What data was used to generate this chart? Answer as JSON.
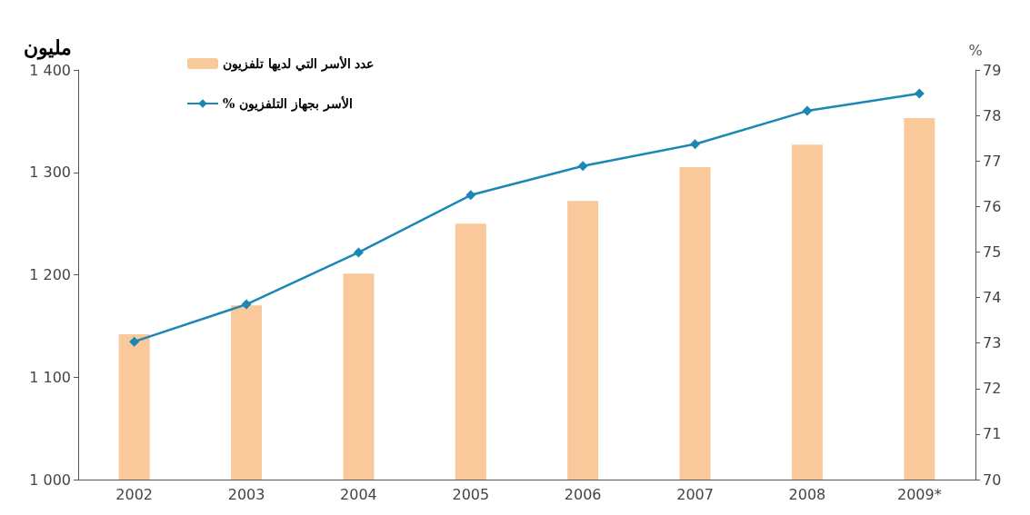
{
  "chart_data": {
    "type": "bar",
    "ylabel": "مليون",
    "y2label": "%",
    "categories": [
      "2002",
      "2003",
      "2004",
      "2005",
      "2006",
      "2007",
      "2008",
      "2009*"
    ],
    "series": [
      {
        "name": "عدد الأسر التي لديها تلفزيون",
        "color": "#f9c99b",
        "values": [
          1142,
          1170,
          1201,
          1250,
          1272,
          1305,
          1327,
          1353
        ]
      },
      {
        "name": "% الأسر بجهاز التلفزيون",
        "type": "line",
        "axis": "y2",
        "color": "#1a87b5",
        "marker": "diamond",
        "values": [
          73.03,
          73.85,
          74.99,
          76.25,
          76.89,
          77.37,
          78.1,
          78.48
        ]
      }
    ],
    "ylim": [
      1000,
      1400
    ],
    "yticks": [
      {
        "value": 1000,
        "label": "1 000"
      },
      {
        "value": 1100,
        "label": "1 100"
      },
      {
        "value": 1200,
        "label": "1 200"
      },
      {
        "value": 1300,
        "label": "1 300"
      },
      {
        "value": 1400,
        "label": "1 400"
      }
    ],
    "y2lim": [
      70,
      79
    ],
    "y2ticks": [
      70,
      71,
      72,
      73,
      74,
      75,
      76,
      77,
      78,
      79
    ],
    "grid": false,
    "legend": "top left"
  }
}
